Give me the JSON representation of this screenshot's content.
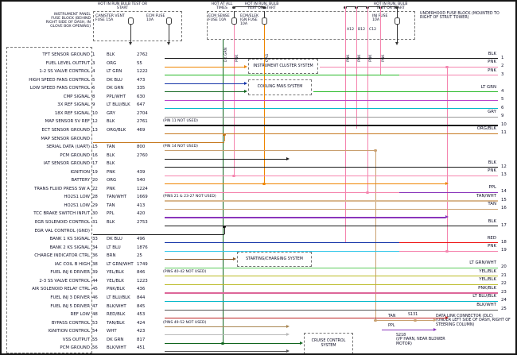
{
  "fuse_section": {
    "left_block_label": "INSTRUMENT PANEL FUSE BLOCK (BEHIND RIGHT SIDE OF DASH, IN GLOVE BOX OPENING)",
    "right_block_label": "UNDERHOOD FUSE BLOCK (MOUNTED TO RIGHT OF STRUT TOWER)",
    "hot_labels": [
      "HOT IN RUN BULB TEST OR START",
      "HOT AT ALL TIMES",
      "HOT IN RUN, BULB TEST OR START",
      "HOT IN RUN, BULB TEST OR START"
    ],
    "fuses": [
      {
        "name": "CANISTER VENT FUSE",
        "rating": "15A"
      },
      {
        "name": "ECM FUSE",
        "rating": "10A"
      },
      {
        "name": "ECM SENSE FUSE",
        "rating": "10A"
      },
      {
        "name": "ECM/ELEK IGN FUSE",
        "rating": "10A"
      },
      {
        "name": "INJ FUSE",
        "rating": "10A"
      }
    ],
    "wire_tags": [
      "PNK",
      "ORG",
      "DK GRN",
      "PNK",
      "PNK",
      "PNK",
      "PNK"
    ],
    "connector_tags": [
      "A12",
      "B12",
      "C12"
    ]
  },
  "annotations": {
    "instrument_cluster": "INSTRUMENT CLUSTER SYSTEM",
    "cooling_fans": "COOLING FANS SYSTEM",
    "starting_charging": "STARTING/CHARGING SYSTEM",
    "cruise": "CRUISE CONTROL SYSTEM",
    "dlc_title": "DATA LINK CONNECTOR (DLC)",
    "dlc_sub": "(UNDER LEFT SIDE OF DASH, RIGHT OF STEERING COLUMN)",
    "s131": "S131",
    "s218": "S218",
    "s218_sub": "(I/P HARN, NEAR BLOWER MOTOR)",
    "dlc_wire_tan": "TAN",
    "dlc_wire_ppl": "PPL"
  },
  "rows": [
    {
      "label": "TFT SENSOR GROUND",
      "pin": "1",
      "wire": "BLK",
      "circuit": "2762",
      "note": "",
      "right_wire": "BLK",
      "right_pin": "1"
    },
    {
      "label": "FUEL LEVEL OUTPUT",
      "pin": "3",
      "wire": "ORG",
      "circuit": "55",
      "note": "",
      "right_wire": "PNK",
      "right_pin": "2"
    },
    {
      "label": "1-2 SS VALVE CONTROL",
      "pin": "4",
      "wire": "LT GRN",
      "circuit": "1222",
      "note": "",
      "right_wire": "PNK",
      "right_pin": "3"
    },
    {
      "label": "HIGH SPEED FANS CONTROL",
      "pin": "5",
      "wire": "DK BLU",
      "circuit": "473",
      "note": "",
      "right_wire": "",
      "right_pin": ""
    },
    {
      "label": "LOW SPEED FANS CONTROL",
      "pin": "6",
      "wire": "DK GRN",
      "circuit": "335",
      "note": "",
      "right_wire": "LT GRN",
      "right_pin": "4"
    },
    {
      "label": "CMP SIGNAL",
      "pin": "8",
      "wire": "PPL/WHT",
      "circuit": "630",
      "note": "",
      "right_wire": "",
      "right_pin": "5"
    },
    {
      "label": "3X REF SIGNAL",
      "pin": "9",
      "wire": "LT BLU/BLK",
      "circuit": "647",
      "note": "",
      "right_wire": "",
      "right_pin": "6"
    },
    {
      "label": "18X REF SIGNAL",
      "pin": "10",
      "wire": "GRY",
      "circuit": "2704",
      "note": "",
      "right_wire": "GRY",
      "right_pin": "9"
    },
    {
      "label": "MAP SENSOR 5V REF",
      "pin": "12",
      "wire": "BLK",
      "circuit": "2761",
      "note": "(PIN 11 NOT USED)",
      "right_wire": "",
      "right_pin": "10"
    },
    {
      "label": "ECT SENSOR GROUND",
      "pin": "13",
      "wire": "ORG/BLK",
      "circuit": "469",
      "note": "",
      "right_wire": "ORG/BLK",
      "right_pin": "11"
    },
    {
      "label": "MAP SENSOR GROUND",
      "pin": "",
      "wire": "",
      "circuit": "",
      "note": "",
      "right_wire": "",
      "right_pin": ""
    },
    {
      "label": "SERIAL DATA (UART)",
      "pin": "15",
      "wire": "TAN",
      "circuit": "800",
      "note": "(PIN 14 NOT USED)",
      "right_wire": "",
      "right_pin": ""
    },
    {
      "label": "PCM GROUND",
      "pin": "16",
      "wire": "BLK",
      "circuit": "2760",
      "note": "",
      "right_wire": "",
      "right_pin": ""
    },
    {
      "label": "IAT SENSOR GROUND",
      "pin": "17",
      "wire": "BLK",
      "circuit": "",
      "note": "",
      "right_wire": "BLK",
      "right_pin": "12"
    },
    {
      "label": "IGNITION",
      "pin": "19",
      "wire": "PNK",
      "circuit": "439",
      "note": "",
      "right_wire": "PNK",
      "right_pin": "13"
    },
    {
      "label": "BATTERY",
      "pin": "20",
      "wire": "ORG",
      "circuit": "540",
      "note": "",
      "right_wire": "",
      "right_pin": ""
    },
    {
      "label": "TRANS FLUID PRESS SW A",
      "pin": "22",
      "wire": "PNK",
      "circuit": "1224",
      "note": "",
      "right_wire": "PPL",
      "right_pin": "14"
    },
    {
      "label": "HO2S1 LOW",
      "pin": "28",
      "wire": "TAN/WHT",
      "circuit": "1669",
      "note": "(PINS 21 & 23-27 NOT USED)",
      "right_wire": "TAN/WHT",
      "right_pin": "15"
    },
    {
      "label": "HO2S1 LOW",
      "pin": "29",
      "wire": "TAN",
      "circuit": "413",
      "note": "",
      "right_wire": "TAN",
      "right_pin": "16"
    },
    {
      "label": "TCC BRAKE SWITCH INPUT",
      "pin": "30",
      "wire": "PPL",
      "circuit": "420",
      "note": "",
      "right_wire": "",
      "right_pin": ""
    },
    {
      "label": "EGR SOLENOID CONTROL",
      "pin": "31",
      "wire": "BLK",
      "circuit": "2753",
      "note": "",
      "right_wire": "BLK",
      "right_pin": "17"
    },
    {
      "label": "EGR VAL CONTROL (GND)",
      "pin": "",
      "wire": "",
      "circuit": "",
      "note": "",
      "right_wire": "",
      "right_pin": ""
    },
    {
      "label": "BANK 1 KS SIGNAL",
      "pin": "33",
      "wire": "DK BLU",
      "circuit": "496",
      "note": "",
      "right_wire": "RED",
      "right_pin": "18"
    },
    {
      "label": "BANK 2 KS SIGNAL",
      "pin": "34",
      "wire": "LT BLU",
      "circuit": "1876",
      "note": "",
      "right_wire": "PNK",
      "right_pin": "19"
    },
    {
      "label": "CHARGE INDICATOR CTRL",
      "pin": "36",
      "wire": "BRN",
      "circuit": "25",
      "note": "",
      "right_wire": "",
      "right_pin": ""
    },
    {
      "label": "IAC COIL B HIGH",
      "pin": "38",
      "wire": "LT GRN/WHT",
      "circuit": "1749",
      "note": "",
      "right_wire": "LT GRN/WHT",
      "right_pin": "20"
    },
    {
      "label": "FUEL INJ 6 DRIVER",
      "pin": "39",
      "wire": "YEL/BLK",
      "circuit": "846",
      "note": "(PINS 40-42 NOT USED)",
      "right_wire": "YEL/BLK",
      "right_pin": "21"
    },
    {
      "label": "2-3 SS VALVE CONTROL",
      "pin": "44",
      "wire": "YEL/BLK",
      "circuit": "1223",
      "note": "",
      "right_wire": "YEL/BLK",
      "right_pin": "22"
    },
    {
      "label": "AIR SOLENOID RELAY CTRL",
      "pin": "45",
      "wire": "PNK/BLK",
      "circuit": "436",
      "note": "",
      "right_wire": "PNK/BLK",
      "right_pin": "23"
    },
    {
      "label": "FUEL INJ 3 DRIVER",
      "pin": "46",
      "wire": "LT BLU/BLK",
      "circuit": "844",
      "note": "",
      "right_wire": "LT BLU/BLK",
      "right_pin": "24"
    },
    {
      "label": "FUEL INJ 5 DRIVER",
      "pin": "47",
      "wire": "BLK/WHT",
      "circuit": "845",
      "note": "",
      "right_wire": "BLK/WHT",
      "right_pin": "25"
    },
    {
      "label": "REF LOW",
      "pin": "48",
      "wire": "RED/BLK",
      "circuit": "453",
      "note": "",
      "right_wire": "",
      "right_pin": ""
    },
    {
      "label": "BYPASS CONTROL",
      "pin": "53",
      "wire": "TAN/BLK",
      "circuit": "424",
      "note": "(PINS 49-52 NOT USED)",
      "right_wire": "",
      "right_pin": ""
    },
    {
      "label": "IGNITION CONTROL",
      "pin": "54",
      "wire": "WHT",
      "circuit": "423",
      "note": "",
      "right_wire": "",
      "right_pin": ""
    },
    {
      "label": "VSS OUTPUT",
      "pin": "55",
      "wire": "DK GRN",
      "circuit": "817",
      "note": "",
      "right_wire": "",
      "right_pin": ""
    },
    {
      "label": "PCM GROUND",
      "pin": "56",
      "wire": "BLK/WHT",
      "circuit": "451",
      "note": "",
      "right_wire": "",
      "right_pin": ""
    }
  ],
  "wire_colors": {
    "BLK": "#1a1a1a",
    "ORG": "#ef8500",
    "LT GRN": "#27b927",
    "DK BLU": "#1535a8",
    "DK GRN": "#12661f",
    "PPL/WHT": "#bb44cc",
    "LT BLU/BLK": "#00b7c9",
    "GRY": "#979797",
    "ORG/BLK": "#c67a22",
    "TAN": "#c9a070",
    "PNK": "#f584ae",
    "TAN/WHT": "#d9b890",
    "PPL": "#8a35bb",
    "LT BLU": "#38c8ea",
    "BRN": "#8a5524",
    "LT GRN/WHT": "#5ccc5c",
    "YEL/BLK": "#b9b922",
    "PNK/BLK": "#dd6699",
    "BLK/WHT": "#565656",
    "RED/BLK": "#bb2424",
    "TAN/BLK": "#a98753",
    "WHT": "#b9b9b9",
    "RED": "#ee1414"
  }
}
